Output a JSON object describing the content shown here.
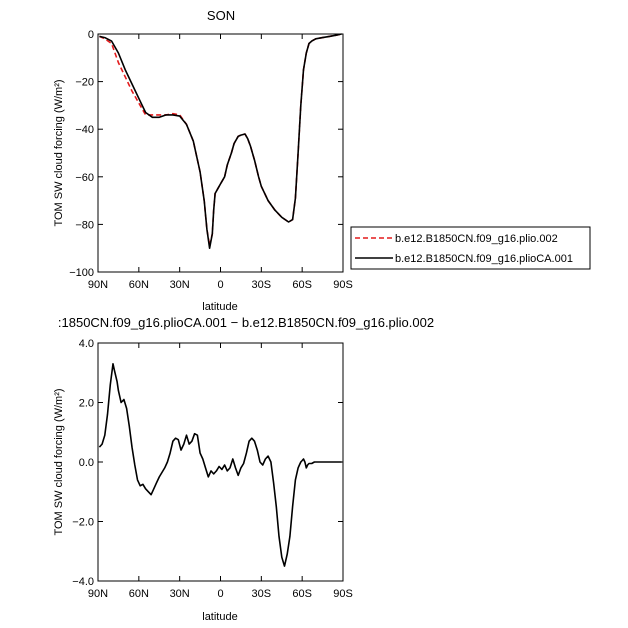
{
  "chart_data": [
    {
      "type": "line",
      "title": "SON",
      "xlabel": "latitude",
      "ylabel": "TOM SW cloud forcing (W/m²)",
      "xlim": [
        90,
        -90
      ],
      "ylim": [
        -100,
        0
      ],
      "x_ticks": [
        90,
        60,
        30,
        0,
        -30,
        -60,
        -90
      ],
      "x_tick_labels": [
        "90N",
        "60N",
        "30N",
        "0",
        "30S",
        "60S",
        "90S"
      ],
      "y_ticks": [
        0,
        -20,
        -40,
        -60,
        -80,
        -100
      ],
      "y_tick_labels": [
        "0",
        "−20",
        "−40",
        "−60",
        "−80",
        "−100"
      ],
      "legend": {
        "placement": "right",
        "entries": [
          "b.e12.B1850CN.f09_g16.plio.002",
          "b.e12.B1850CN.f09_g16.plioCA.001"
        ]
      },
      "series": [
        {
          "name": "b.e12.B1850CN.f09_g16.plio.002",
          "color": "#e41a1c",
          "dash": "dashed",
          "x": [
            89,
            85,
            80,
            75,
            70,
            65,
            60,
            55,
            50,
            45,
            40,
            35,
            30,
            25,
            20,
            15,
            12,
            10,
            8,
            6,
            5,
            4,
            2,
            0,
            -3,
            -5,
            -8,
            -10,
            -13,
            -15,
            -18,
            -20,
            -22,
            -25,
            -28,
            -30,
            -35,
            -40,
            -45,
            -50,
            -53,
            -55,
            -57,
            -59,
            -61,
            -63,
            -65,
            -67,
            -70,
            -75,
            -80,
            -85,
            -89
          ],
          "y": [
            -1,
            -2,
            -4,
            -12,
            -18,
            -24,
            -29,
            -34,
            -34,
            -34,
            -34,
            -33.5,
            -34,
            -38,
            -45,
            -58,
            -70,
            -82,
            -89,
            -84,
            -74,
            -67,
            -65,
            -63,
            -60,
            -55,
            -50,
            -46,
            -43,
            -42.5,
            -42,
            -44,
            -47,
            -53,
            -60,
            -64,
            -70,
            -74,
            -77,
            -79,
            -78,
            -69,
            -50,
            -30,
            -15,
            -8,
            -4,
            -3,
            -2,
            -1.5,
            -1,
            -0.5,
            0
          ],
          "y_missing": []
        },
        {
          "name": "b.e12.B1850CN.f09_g16.plioCA.001",
          "color": "#000000",
          "dash": "solid",
          "x": [
            89,
            85,
            80,
            75,
            70,
            65,
            60,
            55,
            50,
            45,
            40,
            35,
            30,
            25,
            20,
            15,
            12,
            10,
            8,
            6,
            5,
            4,
            2,
            0,
            -3,
            -5,
            -8,
            -10,
            -13,
            -15,
            -18,
            -20,
            -22,
            -25,
            -28,
            -30,
            -35,
            -40,
            -45,
            -50,
            -53,
            -55,
            -57,
            -59,
            -61,
            -63,
            -65,
            -67,
            -70,
            -75,
            -80,
            -85,
            -89
          ],
          "y": [
            -1,
            -1.5,
            -3,
            -8,
            -15,
            -21,
            -27,
            -33,
            -35,
            -35,
            -34,
            -34,
            -34.5,
            -38,
            -45,
            -58,
            -70,
            -82,
            -90,
            -84,
            -74,
            -67,
            -65,
            -63,
            -60,
            -55,
            -50,
            -46,
            -43,
            -42.5,
            -42,
            -44,
            -47,
            -53,
            -60,
            -64,
            -70,
            -74,
            -77,
            -79,
            -78,
            -69,
            -50,
            -30,
            -15,
            -8,
            -4,
            -3,
            -2,
            -1.5,
            -1,
            -0.5,
            0
          ]
        }
      ]
    },
    {
      "type": "line",
      "title": ":1850CN.f09_g16.plioCA.001 − b.e12.B1850CN.f09_g16.plio.002",
      "xlabel": "latitude",
      "ylabel": "TOM SW cloud forcing (W/m²)",
      "xlim": [
        90,
        -90
      ],
      "ylim": [
        -4,
        4
      ],
      "x_ticks": [
        90,
        60,
        30,
        0,
        -30,
        -60,
        -90
      ],
      "x_tick_labels": [
        "90N",
        "60N",
        "30N",
        "0",
        "30S",
        "60S",
        "90S"
      ],
      "y_ticks": [
        4,
        2,
        0,
        -2,
        -4
      ],
      "y_tick_labels": [
        "4.0",
        "2.0",
        "0.0",
        "−2.0",
        "−4.0"
      ],
      "series": [
        {
          "color": "#000000",
          "dash": "solid",
          "x": [
            89,
            87,
            85,
            83,
            81,
            79,
            78,
            76,
            75,
            73,
            71,
            69,
            67,
            65,
            63,
            61,
            59,
            57,
            55,
            53,
            51,
            49,
            47,
            45,
            43,
            41,
            39,
            37,
            35,
            33,
            31,
            29,
            27,
            25,
            23,
            21,
            19,
            17,
            15,
            13,
            11,
            9,
            7,
            5,
            3,
            1,
            -1,
            -3,
            -5,
            -7,
            -9,
            -11,
            -13,
            -15,
            -17,
            -19,
            -21,
            -23,
            -25,
            -27,
            -29,
            -31,
            -33,
            -35,
            -37,
            -39,
            -41,
            -43,
            -45,
            -47,
            -49,
            -51,
            -53,
            -55,
            -57,
            -58,
            -59,
            -60,
            -61,
            -62,
            -63,
            -64,
            -65,
            -67,
            -69,
            -71,
            -73,
            -75,
            -77,
            -79,
            -81,
            -83,
            -85,
            -87,
            -89
          ],
          "y": [
            0.5,
            0.6,
            0.9,
            1.6,
            2.6,
            3.3,
            3.1,
            2.7,
            2.4,
            2.0,
            2.1,
            1.8,
            1.2,
            0.5,
            -0.1,
            -0.6,
            -0.8,
            -0.75,
            -0.9,
            -1.0,
            -1.1,
            -0.9,
            -0.7,
            -0.5,
            -0.35,
            -0.2,
            0.0,
            0.3,
            0.7,
            0.8,
            0.75,
            0.4,
            0.6,
            0.9,
            0.6,
            0.7,
            0.95,
            0.9,
            0.3,
            0.1,
            -0.2,
            -0.5,
            -0.3,
            -0.4,
            -0.3,
            -0.15,
            -0.25,
            -0.1,
            -0.3,
            -0.2,
            0.1,
            -0.2,
            -0.45,
            -0.2,
            -0.05,
            0.3,
            0.7,
            0.8,
            0.7,
            0.4,
            0.0,
            -0.1,
            0.1,
            0.2,
            0.0,
            -0.7,
            -1.5,
            -2.5,
            -3.2,
            -3.5,
            -3.1,
            -2.5,
            -1.5,
            -0.6,
            -0.2,
            -0.1,
            0.0,
            0.05,
            0.1,
            0.0,
            -0.2,
            -0.1,
            -0.05,
            -0.05,
            0.0,
            0.0,
            0.0,
            0.0,
            0.0,
            0.0,
            0.0,
            0.0,
            0.0,
            0.0,
            0.0
          ]
        }
      ]
    }
  ]
}
